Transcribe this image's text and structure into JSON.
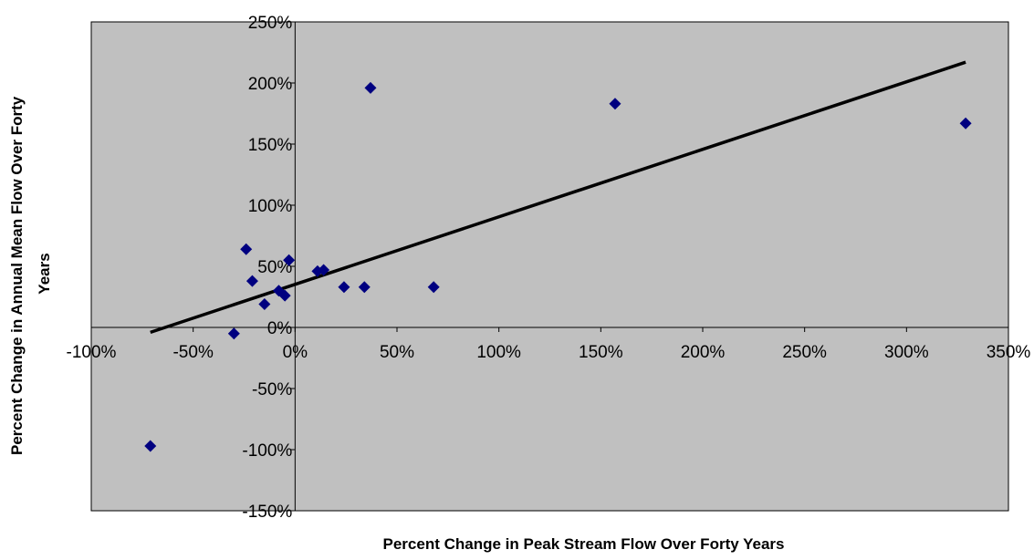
{
  "chart_data": {
    "type": "scatter",
    "title": "",
    "xlabel": "Percent Change in Peak Stream Flow Over Forty Years",
    "ylabel_lines": [
      "Percent Change in Annual Mean Flow Over Forty",
      "Years"
    ],
    "xlim": [
      -100,
      350
    ],
    "ylim": [
      -150,
      250
    ],
    "x_ticks": [
      -100,
      -50,
      0,
      50,
      100,
      150,
      200,
      250,
      300,
      350
    ],
    "y_ticks": [
      -150,
      -100,
      -50,
      0,
      50,
      100,
      150,
      200,
      250
    ],
    "x_tick_labels": [
      "-100%",
      "-50%",
      "0%",
      "50%",
      "100%",
      "150%",
      "200%",
      "250%",
      "300%",
      "350%"
    ],
    "y_tick_labels": [
      "-150%",
      "-100%",
      "-50%",
      "0%",
      "50%",
      "100%",
      "150%",
      "200%",
      "250%"
    ],
    "grid": false,
    "legend": "none",
    "colors": {
      "plot_background": "#c0c0c0",
      "marker": "#000080",
      "trendline": "#000000"
    },
    "points": [
      {
        "x": -71,
        "y": -97
      },
      {
        "x": -30,
        "y": -5
      },
      {
        "x": -24,
        "y": 64
      },
      {
        "x": -21,
        "y": 38
      },
      {
        "x": -15,
        "y": 19
      },
      {
        "x": -8,
        "y": 30
      },
      {
        "x": -5,
        "y": 26
      },
      {
        "x": -3,
        "y": 55
      },
      {
        "x": 11,
        "y": 46
      },
      {
        "x": 14,
        "y": 47
      },
      {
        "x": 24,
        "y": 33
      },
      {
        "x": 34,
        "y": 33
      },
      {
        "x": 37,
        "y": 196
      },
      {
        "x": 68,
        "y": 33
      },
      {
        "x": 157,
        "y": 183
      },
      {
        "x": 329,
        "y": 167
      }
    ],
    "trendline": {
      "x": [
        -71,
        329
      ],
      "y": [
        -4,
        217
      ]
    }
  }
}
